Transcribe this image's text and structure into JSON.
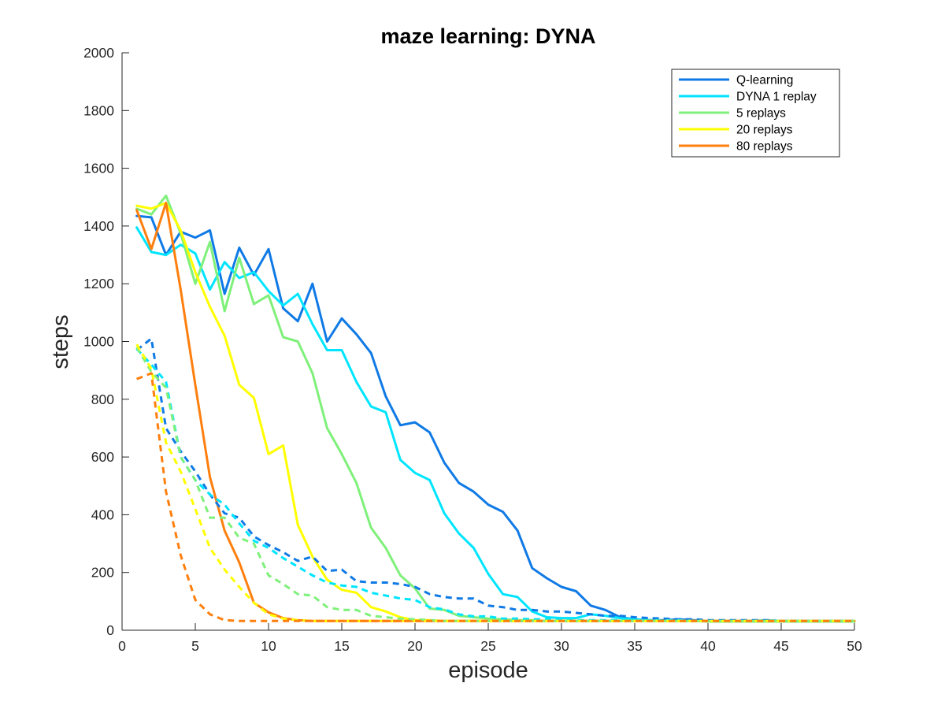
{
  "chart_data": {
    "type": "line",
    "title": "maze learning: DYNA",
    "xlabel": "episode",
    "ylabel": "steps",
    "xlim": [
      0,
      50
    ],
    "ylim": [
      0,
      2000
    ],
    "xticks": [
      0,
      5,
      10,
      15,
      20,
      25,
      30,
      35,
      40,
      45,
      50
    ],
    "yticks": [
      0,
      200,
      400,
      600,
      800,
      1000,
      1200,
      1400,
      1600,
      1800,
      2000
    ],
    "grid": false,
    "legend_position": "top-right",
    "x": [
      1,
      2,
      3,
      4,
      5,
      6,
      7,
      8,
      9,
      10,
      11,
      12,
      13,
      14,
      15,
      16,
      17,
      18,
      19,
      20,
      21,
      22,
      23,
      24,
      25,
      26,
      27,
      28,
      29,
      30,
      31,
      32,
      33,
      34,
      35,
      36,
      37,
      38,
      39,
      40,
      41,
      42,
      43,
      44,
      45,
      46,
      47,
      48,
      49,
      50
    ],
    "series": [
      {
        "name": "Q-learning",
        "color": "#0f7ae5",
        "style": "solid",
        "values": [
          1435,
          1430,
          1300,
          1380,
          1360,
          1385,
          1165,
          1325,
          1230,
          1320,
          1115,
          1070,
          1200,
          1000,
          1080,
          1025,
          960,
          810,
          710,
          720,
          685,
          580,
          510,
          480,
          435,
          410,
          345,
          215,
          180,
          150,
          135,
          85,
          70,
          45,
          38,
          35,
          35,
          38,
          35,
          32,
          32,
          32,
          30,
          32,
          30,
          30,
          30,
          30,
          30,
          30
        ]
      },
      {
        "name": "DYNA 1 replay",
        "color": "#00e5ff",
        "style": "solid",
        "values": [
          1395,
          1310,
          1300,
          1335,
          1305,
          1180,
          1275,
          1220,
          1240,
          1175,
          1125,
          1165,
          1060,
          970,
          970,
          860,
          775,
          755,
          590,
          545,
          520,
          405,
          335,
          285,
          195,
          125,
          115,
          65,
          45,
          42,
          42,
          55,
          50,
          42,
          38,
          35,
          32,
          32,
          32,
          32,
          32,
          32,
          32,
          35,
          32,
          30,
          30,
          30,
          30,
          30
        ]
      },
      {
        "name": "5 replays",
        "color": "#7ff07a",
        "style": "solid",
        "values": [
          1460,
          1440,
          1505,
          1375,
          1200,
          1345,
          1105,
          1290,
          1130,
          1160,
          1015,
          1000,
          890,
          700,
          610,
          510,
          355,
          285,
          190,
          145,
          75,
          70,
          50,
          45,
          40,
          38,
          35,
          35,
          32,
          32,
          32,
          32,
          32,
          32,
          32,
          32,
          32,
          32,
          32,
          30,
          30,
          30,
          30,
          30,
          30,
          30,
          30,
          30,
          30,
          30
        ]
      },
      {
        "name": "20 replays",
        "color": "#ffff00",
        "style": "solid",
        "values": [
          1470,
          1460,
          1480,
          1385,
          1240,
          1120,
          1020,
          850,
          805,
          610,
          640,
          365,
          255,
          175,
          140,
          130,
          80,
          65,
          45,
          35,
          35,
          32,
          32,
          32,
          32,
          32,
          32,
          32,
          32,
          32,
          32,
          32,
          32,
          32,
          32,
          32,
          32,
          32,
          32,
          32,
          32,
          32,
          32,
          32,
          32,
          32,
          32,
          32,
          32,
          32
        ]
      },
      {
        "name": "80 replays",
        "color": "#ff7f0e",
        "style": "solid",
        "values": [
          1455,
          1320,
          1480,
          1180,
          850,
          530,
          345,
          235,
          95,
          62,
          42,
          35,
          32,
          32,
          32,
          32,
          32,
          32,
          32,
          32,
          32,
          32,
          32,
          32,
          32,
          32,
          32,
          32,
          32,
          32,
          32,
          32,
          32,
          32,
          32,
          32,
          32,
          32,
          32,
          32,
          32,
          32,
          32,
          32,
          32,
          32,
          32,
          32,
          32,
          32
        ]
      },
      {
        "color": "#0f7ae5",
        "style": "dashed",
        "values": [
          970,
          1010,
          700,
          620,
          550,
          470,
          405,
          390,
          325,
          295,
          270,
          240,
          255,
          205,
          210,
          170,
          165,
          165,
          160,
          150,
          125,
          115,
          110,
          110,
          85,
          80,
          70,
          70,
          65,
          65,
          60,
          55,
          50,
          50,
          45,
          42,
          40,
          38,
          38,
          35,
          35,
          35,
          35,
          35,
          32,
          32,
          32,
          32,
          32,
          32
        ]
      },
      {
        "color": "#00e5ff",
        "style": "dashed",
        "values": [
          975,
          920,
          860,
          600,
          520,
          470,
          435,
          370,
          310,
          285,
          250,
          220,
          190,
          165,
          155,
          150,
          130,
          120,
          110,
          105,
          80,
          72,
          55,
          48,
          48,
          40,
          40,
          38,
          38,
          35,
          35,
          35,
          35,
          35,
          35,
          35,
          35,
          35,
          32,
          32,
          32,
          32,
          32,
          32,
          32,
          32,
          32,
          32,
          32,
          32
        ]
      },
      {
        "color": "#7ff07a",
        "style": "dashed",
        "values": [
          980,
          895,
          840,
          600,
          520,
          390,
          390,
          320,
          300,
          190,
          160,
          125,
          120,
          80,
          70,
          70,
          50,
          45,
          40,
          38,
          35,
          32,
          32,
          32,
          32,
          32,
          32,
          32,
          32,
          32,
          32,
          32,
          32,
          32,
          32,
          32,
          32,
          32,
          32,
          32,
          32,
          32,
          32,
          32,
          32,
          32,
          32,
          32,
          32,
          32
        ]
      },
      {
        "color": "#ffff00",
        "style": "dashed",
        "values": [
          990,
          905,
          650,
          550,
          420,
          285,
          210,
          150,
          95,
          55,
          40,
          35,
          32,
          32,
          32,
          32,
          32,
          32,
          32,
          32,
          32,
          32,
          32,
          32,
          32,
          32,
          32,
          32,
          32,
          32,
          32,
          32,
          32,
          32,
          32,
          32,
          32,
          32,
          32,
          32,
          32,
          32,
          32,
          32,
          32,
          32,
          32,
          32,
          32,
          32
        ]
      },
      {
        "color": "#ff7f0e",
        "style": "dashed",
        "values": [
          870,
          890,
          480,
          260,
          105,
          55,
          35,
          32,
          32,
          32,
          32,
          32,
          32,
          32,
          32,
          32,
          32,
          32,
          32,
          32,
          32,
          32,
          32,
          32,
          32,
          32,
          32,
          32,
          32,
          32,
          32,
          32,
          32,
          32,
          32,
          32,
          32,
          32,
          32,
          32,
          32,
          32,
          32,
          32,
          32,
          32,
          32,
          32,
          32,
          32
        ]
      }
    ]
  }
}
